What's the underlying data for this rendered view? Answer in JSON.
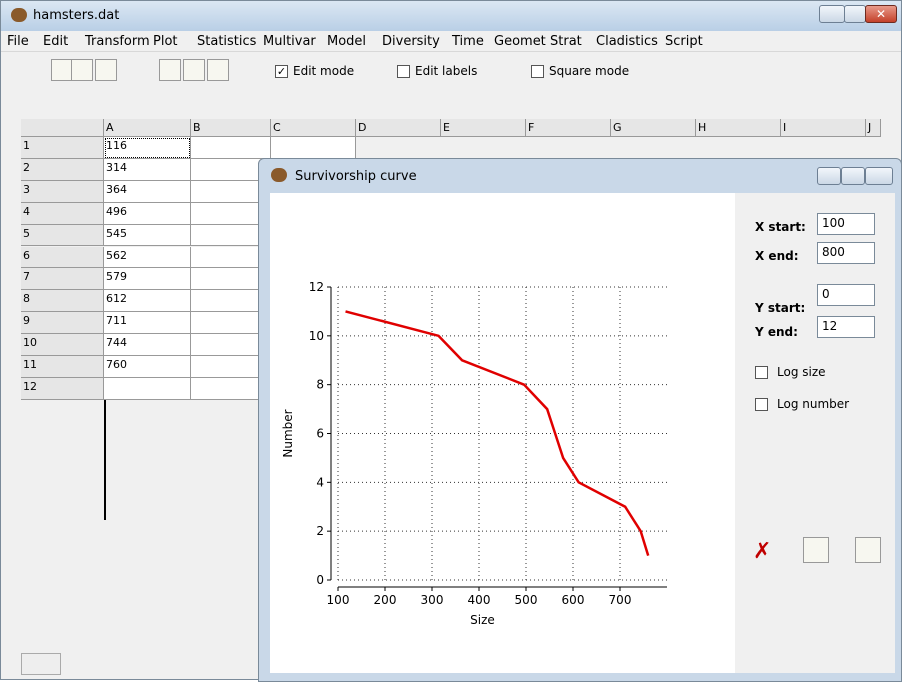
{
  "window": {
    "title": "hamsters.dat"
  },
  "menu": [
    "File",
    "Edit",
    "Transform",
    "Plot",
    "Statistics",
    "Multivar",
    "Model",
    "Diversity",
    "Time",
    "Geomet",
    "Strat",
    "Cladistics",
    "Script"
  ],
  "toolbar": {
    "checkboxes": [
      {
        "label": "Edit mode",
        "checked": true
      },
      {
        "label": "Edit labels",
        "checked": false
      },
      {
        "label": "Square mode",
        "checked": false
      }
    ]
  },
  "spreadsheet": {
    "columns": [
      "A",
      "B",
      "C",
      "D",
      "E",
      "F",
      "G",
      "H",
      "I",
      "J"
    ],
    "rows": [
      "1",
      "2",
      "3",
      "4",
      "5",
      "6",
      "7",
      "8",
      "9",
      "10",
      "11",
      "12"
    ]
  },
  "plot_window": {
    "title": "Survivorship curve",
    "fields": [
      "X start:",
      "X end:",
      "Y start:",
      "Y end:"
    ],
    "checkboxes": [
      {
        "label": "Log size",
        "checked": false
      },
      {
        "label": "Log number",
        "checked": false
      }
    ]
  },
  "chart_data": {
    "type": "line",
    "xlabel": "Size",
    "ylabel": "Number",
    "x": [
      116,
      314,
      364,
      496,
      545,
      562,
      579,
      612,
      711,
      744,
      760
    ],
    "values": [
      11,
      10,
      9,
      8,
      7,
      6,
      5,
      4,
      3,
      2,
      1
    ],
    "color": "#e00000",
    "xlim": [
      100,
      800
    ],
    "ylim": [
      0,
      12
    ],
    "xticks": [
      100,
      200,
      300,
      400,
      500,
      600,
      700
    ],
    "yticks": [
      0,
      2,
      4,
      6,
      8,
      10,
      12
    ],
    "grid": true
  }
}
